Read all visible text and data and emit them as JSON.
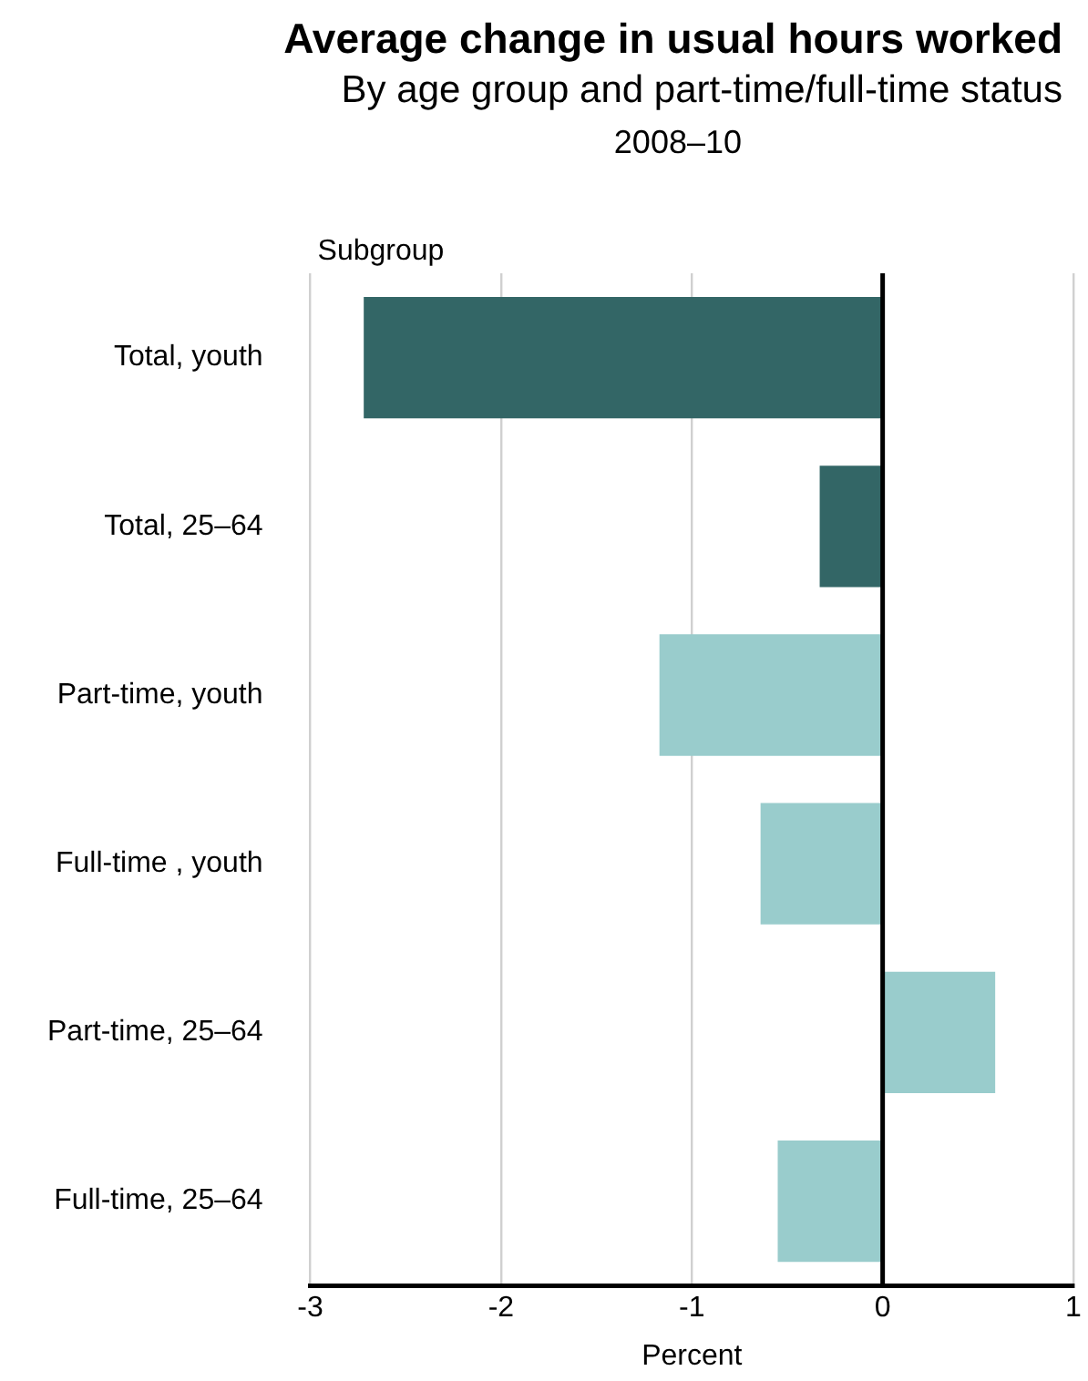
{
  "chart_data": {
    "type": "bar",
    "orientation": "horizontal",
    "title": "Average change in usual hours worked",
    "subtitle": "By age group and part-time/full-time status",
    "annotations": [
      "2008–10"
    ],
    "ylabel": "Subgroup",
    "xlabel": "Percent",
    "categories": [
      "Total, youth",
      "Total, 25–64",
      "Part-time, youth",
      "Full-time , youth",
      "Part-time, 25–64",
      "Full-time, 25–64"
    ],
    "values": [
      -2.72,
      -0.33,
      -1.17,
      -0.64,
      0.59,
      -0.55
    ],
    "colors": [
      "#336666",
      "#336666",
      "#99cccc",
      "#99cccc",
      "#99cccc",
      "#99cccc"
    ],
    "xlim": [
      -3,
      1
    ],
    "xticks": [
      -3,
      -2,
      -1,
      0,
      1
    ],
    "grid": "x",
    "ref_lines": [
      {
        "axis": "x",
        "value": 0,
        "color": "#000000"
      }
    ]
  }
}
